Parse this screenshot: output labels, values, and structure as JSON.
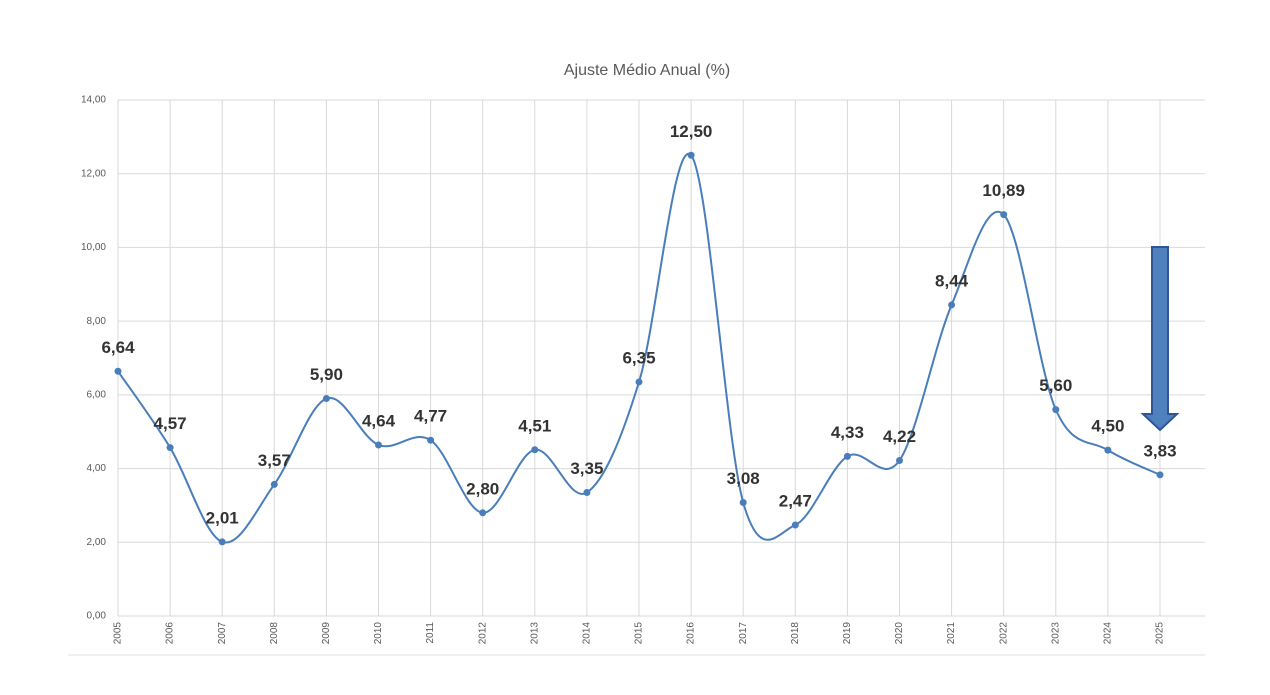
{
  "chart_data": {
    "type": "line",
    "title": "Ajuste Médio Anual (%)",
    "categories": [
      "2005",
      "2006",
      "2007",
      "2008",
      "2009",
      "2010",
      "2011",
      "2012",
      "2013",
      "2014",
      "2015",
      "2016",
      "2017",
      "2018",
      "2019",
      "2020",
      "2021",
      "2022",
      "2023",
      "2024",
      "2025"
    ],
    "values": [
      6.64,
      4.57,
      2.01,
      3.57,
      5.9,
      4.64,
      4.77,
      2.8,
      4.51,
      3.35,
      6.35,
      12.5,
      3.08,
      2.47,
      4.33,
      4.22,
      8.44,
      10.89,
      5.6,
      4.5,
      3.83
    ],
    "value_labels": [
      "6,64",
      "4,57",
      "2,01",
      "3,57",
      "5,90",
      "4,64",
      "4,77",
      "2,80",
      "4,51",
      "3,35",
      "6,35",
      "12,50",
      "3,08",
      "2,47",
      "4,33",
      "4,22",
      "8,44",
      "10,89",
      "5,60",
      "4,50",
      "3,83"
    ],
    "color": "#4a7ebb",
    "ylim": [
      0,
      14
    ],
    "yticks": [
      {
        "value": 0,
        "label": "0,00"
      },
      {
        "value": 2,
        "label": "2,00"
      },
      {
        "value": 4,
        "label": "4,00"
      },
      {
        "value": 6,
        "label": "6,00"
      },
      {
        "value": 8,
        "label": "8,00"
      },
      {
        "value": 10,
        "label": "10,00"
      },
      {
        "value": 12,
        "label": "12,00"
      },
      {
        "value": 14,
        "label": "14,00"
      }
    ],
    "grid": true
  }
}
